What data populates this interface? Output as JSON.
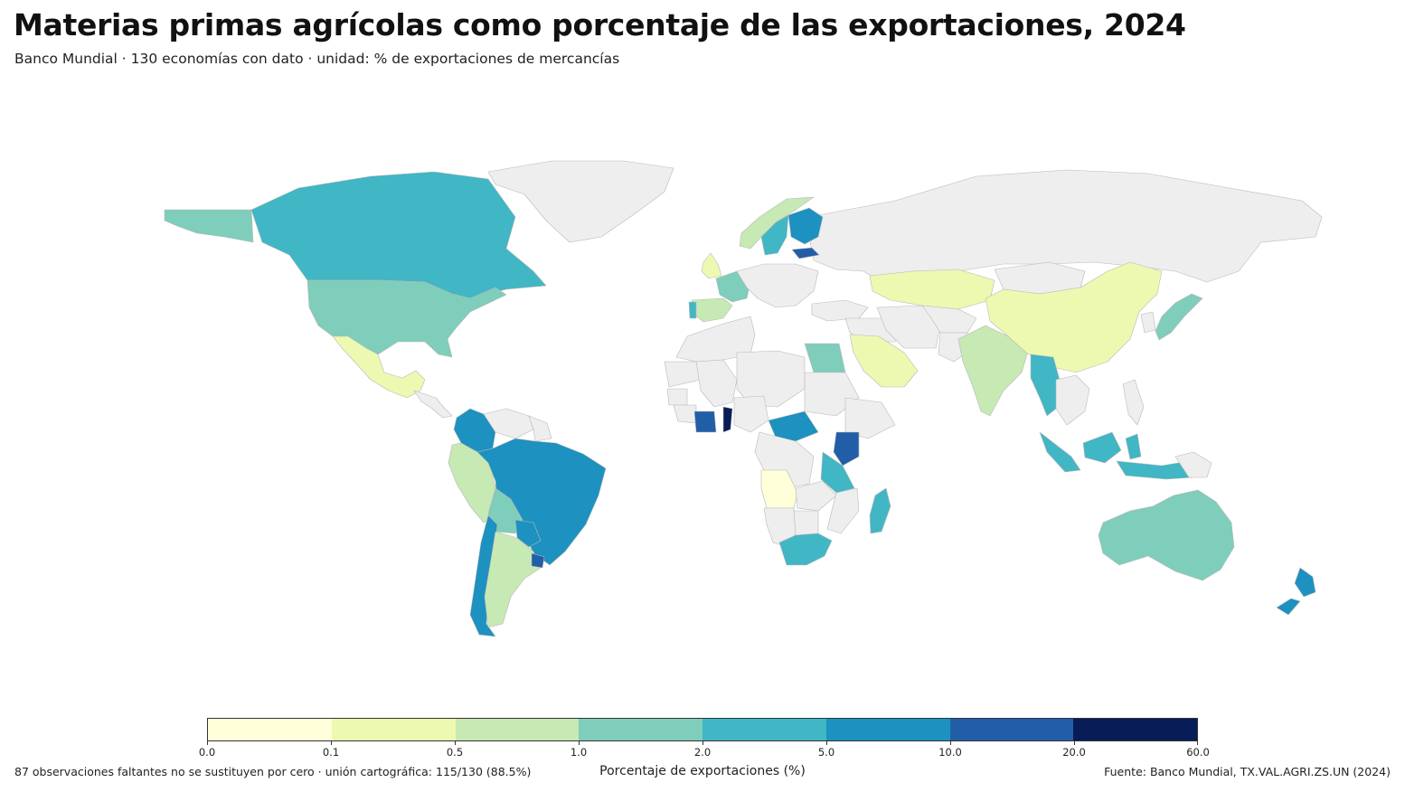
{
  "header": {
    "title": "Materias primas agrícolas como porcentaje de las exportaciones, 2024",
    "subtitle": "Banco Mundial · 130 economías con dato · unidad: % de exportaciones de mercancías"
  },
  "map": {
    "no_data_color": "#eeeeee",
    "border_color": "#b9b9b9",
    "regions": [
      {
        "name": "Canadá",
        "bin": 4
      },
      {
        "name": "Alaska",
        "bin": 3
      },
      {
        "name": "Estados Unidos",
        "bin": 3
      },
      {
        "name": "México",
        "bin": 1
      },
      {
        "name": "Groenlandia",
        "bin": -1
      },
      {
        "name": "Brasil",
        "bin": 5
      },
      {
        "name": "Colombia",
        "bin": 5
      },
      {
        "name": "Perú",
        "bin": 2
      },
      {
        "name": "Bolivia",
        "bin": 3
      },
      {
        "name": "Argentina",
        "bin": 2
      },
      {
        "name": "Chile",
        "bin": 5
      },
      {
        "name": "Uruguay",
        "bin": 6
      },
      {
        "name": "Paraguay",
        "bin": 5
      },
      {
        "name": "Rusia",
        "bin": -1
      },
      {
        "name": "China",
        "bin": 1
      },
      {
        "name": "India",
        "bin": 2
      },
      {
        "name": "Kazajistán",
        "bin": 1
      },
      {
        "name": "Mongolia",
        "bin": -1
      },
      {
        "name": "Australia",
        "bin": 3
      },
      {
        "name": "Nueva Zelanda",
        "bin": 5
      },
      {
        "name": "Indonesia",
        "bin": 4
      },
      {
        "name": "Myanmar",
        "bin": 4
      },
      {
        "name": "Japón",
        "bin": 3
      },
      {
        "name": "Sudáfrica",
        "bin": 4
      },
      {
        "name": "Kenia",
        "bin": 6
      },
      {
        "name": "Egipto",
        "bin": 3
      },
      {
        "name": "Costa de Marfil",
        "bin": 6
      },
      {
        "name": "Ghana",
        "bin": 7
      },
      {
        "name": "Angola",
        "bin": 0
      },
      {
        "name": "Madagascar",
        "bin": 4
      },
      {
        "name": "Finlandia",
        "bin": 5
      },
      {
        "name": "Suecia",
        "bin": 4
      },
      {
        "name": "Noruega",
        "bin": 2
      },
      {
        "name": "Estonia",
        "bin": 6
      },
      {
        "name": "Francia",
        "bin": 3
      },
      {
        "name": "España",
        "bin": 2
      },
      {
        "name": "Portugal",
        "bin": 4
      },
      {
        "name": "Reino Unido",
        "bin": 1
      },
      {
        "name": "Arabia Saudita",
        "bin": 1
      },
      {
        "name": "Tanzania",
        "bin": 4
      },
      {
        "name": "República Centroafricana",
        "bin": 5
      }
    ]
  },
  "legend": {
    "title": "Porcentaje de exportaciones (%)",
    "bins": [
      {
        "from": 0.0,
        "to": 0.1,
        "color": "#ffffd9"
      },
      {
        "from": 0.1,
        "to": 0.5,
        "color": "#edf8b1"
      },
      {
        "from": 0.5,
        "to": 1.0,
        "color": "#c7e9b4"
      },
      {
        "from": 1.0,
        "to": 2.0,
        "color": "#7fcdbb"
      },
      {
        "from": 2.0,
        "to": 5.0,
        "color": "#41b6c4"
      },
      {
        "from": 5.0,
        "to": 10.0,
        "color": "#1d91c0"
      },
      {
        "from": 10.0,
        "to": 20.0,
        "color": "#225ea8"
      },
      {
        "from": 20.0,
        "to": 60.0,
        "color": "#081d58"
      }
    ],
    "ticks": [
      "0.0",
      "0.1",
      "0.5",
      "1.0",
      "2.0",
      "5.0",
      "10.0",
      "20.0",
      "60.0"
    ]
  },
  "footer": {
    "note": "87 observaciones faltantes no se sustituyen por cero · unión cartográfica: 115/130 (88.5%)",
    "source": "Fuente: Banco Mundial, TX.VAL.AGRI.ZS.UN (2024)"
  }
}
